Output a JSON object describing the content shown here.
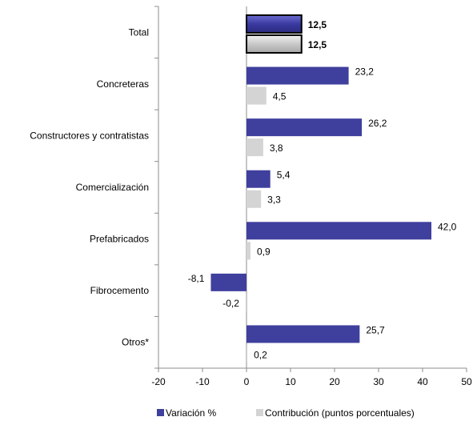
{
  "colors": {
    "variacion": "#3f3f9e",
    "contribucion": "#d4d4d4",
    "total_label_variacion": "#3f3f9e",
    "axis": "#8c8c8c"
  },
  "chart_data": {
    "type": "bar",
    "orientation": "horizontal",
    "categories": [
      "Total",
      "Concreteras",
      "Constructores y contratistas",
      "Comercialización",
      "Prefabricados",
      "Fibrocemento",
      "Otros*"
    ],
    "series": [
      {
        "name": "Variación %",
        "values": [
          12.5,
          23.2,
          26.2,
          5.4,
          42.0,
          -8.1,
          25.7
        ]
      },
      {
        "name": "Contribución (puntos porcentuales)",
        "values": [
          12.5,
          4.5,
          3.8,
          3.3,
          0.9,
          -0.2,
          0.2
        ]
      }
    ],
    "value_labels": [
      [
        "12,5",
        "23,2",
        "26,2",
        "5,4",
        "42,0",
        "-8,1",
        "25,7"
      ],
      [
        "12,5",
        "4,5",
        "3,8",
        "3,3",
        "0,9",
        "-0,2",
        "0,2"
      ]
    ],
    "xlim": [
      -20,
      50
    ],
    "xticks": [
      -20,
      -10,
      0,
      10,
      20,
      30,
      40,
      50
    ],
    "xtick_labels": [
      "-20",
      "-10",
      "0",
      "10",
      "20",
      "30",
      "40",
      "50"
    ],
    "highlighted_category": "Total",
    "legend_position": "bottom",
    "grid": false,
    "title": "",
    "xlabel": "",
    "ylabel": ""
  }
}
